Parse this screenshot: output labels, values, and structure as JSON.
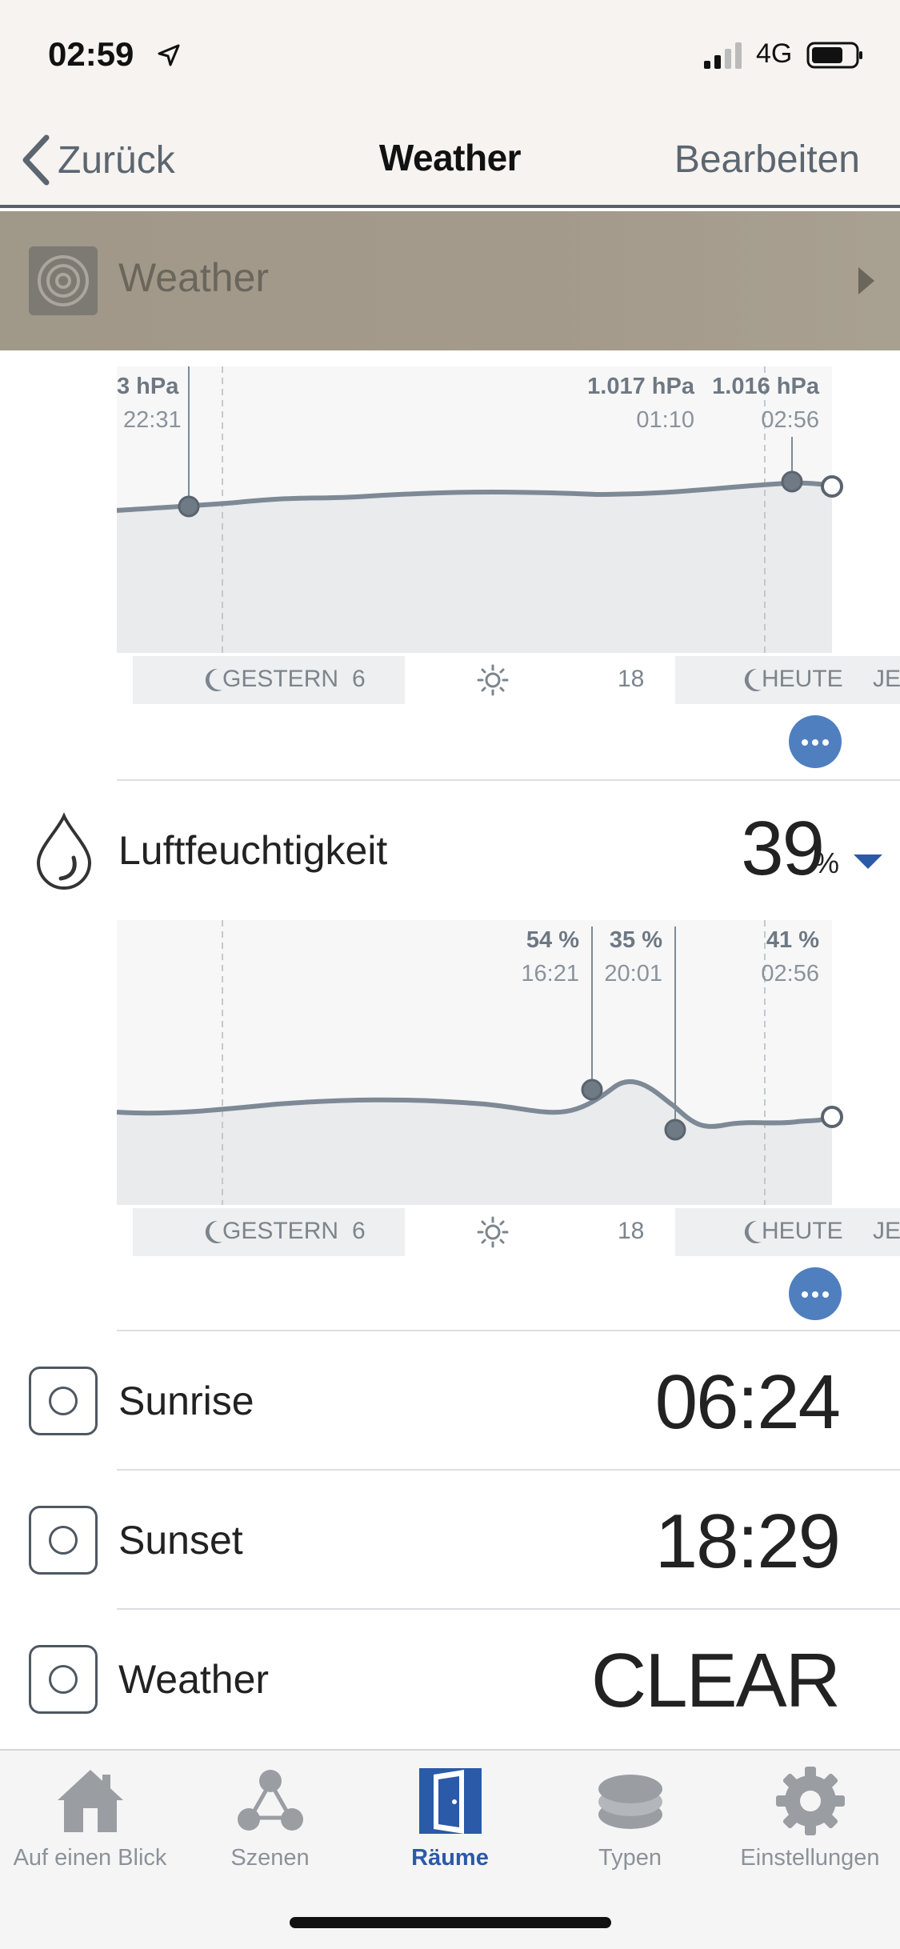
{
  "status_bar": {
    "time": "02:59",
    "network": "4G"
  },
  "nav": {
    "back_label": "Zurück",
    "title": "Weather",
    "edit_label": "Bearbeiten"
  },
  "room": {
    "title": "Weather"
  },
  "pressure_chart": {
    "markers": [
      {
        "value": "3 hPa",
        "time": "22:31"
      },
      {
        "value": "1.017 hPa",
        "time": "01:10"
      },
      {
        "value": "1.016 hPa",
        "time": "02:56"
      }
    ]
  },
  "timebar_top": {
    "gestern": "GESTERN",
    "six": "6",
    "eighteen": "18",
    "heute": "HEUTE",
    "jetzt": "JETZT"
  },
  "humidity": {
    "label": "Luftfeuchtigkeit",
    "value": "39",
    "unit": "%"
  },
  "humidity_chart": {
    "markers": [
      {
        "value": "54 %",
        "time": "16:21"
      },
      {
        "value": "35 %",
        "time": "20:01"
      },
      {
        "value": "41 %",
        "time": "02:56"
      }
    ]
  },
  "timebar_bottom": {
    "gestern": "GESTERN",
    "six": "6",
    "eighteen": "18",
    "heute": "HEUTE",
    "jetzt": "JETZT"
  },
  "rows": [
    {
      "label": "Sunrise",
      "value": "06:24"
    },
    {
      "label": "Sunset",
      "value": "18:29"
    },
    {
      "label": "Weather",
      "value": "CLEAR"
    }
  ],
  "tabs": [
    {
      "label": "Auf einen Blick",
      "icon": "house-icon"
    },
    {
      "label": "Szenen",
      "icon": "scenes-icon"
    },
    {
      "label": "Räume",
      "icon": "door-icon",
      "active": true
    },
    {
      "label": "Typen",
      "icon": "layers-icon"
    },
    {
      "label": "Einstellungen",
      "icon": "gear-icon"
    }
  ],
  "colors": {
    "accent": "#2a5aa8",
    "chart_line": "#7d8a96",
    "more_button": "#4f7fbf",
    "room_bar": "#a49a8c"
  }
}
